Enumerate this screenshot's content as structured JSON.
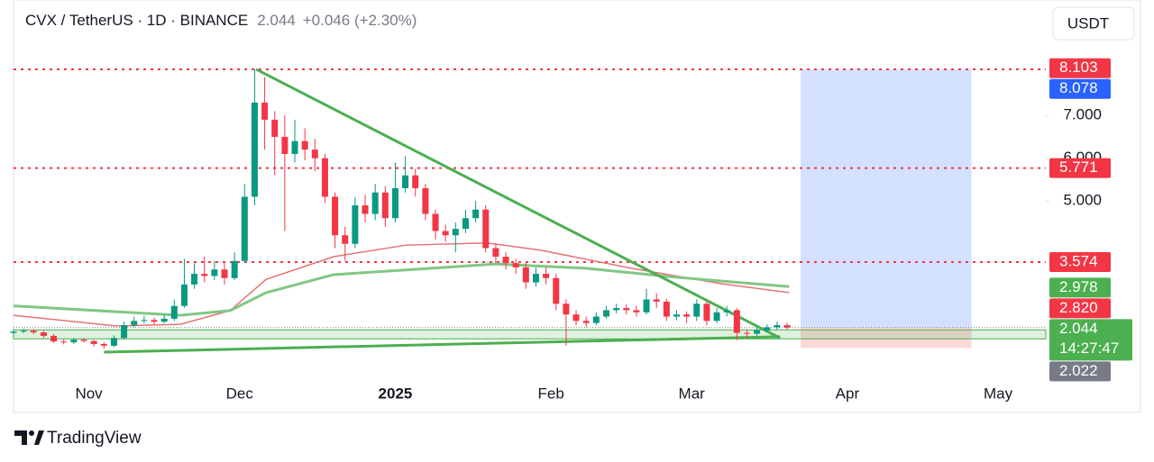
{
  "header": {
    "symbol": "CVX / TetherUS · 1D · BINANCE",
    "price": "2.044",
    "change": "+0.046 (+2.30%)",
    "currency": "USDT",
    "brand": "TradingView"
  },
  "chart_data": {
    "type": "candlestick",
    "up_color": "#089981",
    "down_color": "#f23645",
    "x": [
      0,
      2,
      4,
      6,
      8,
      10,
      12,
      14,
      16,
      18,
      20,
      22,
      24,
      26,
      28,
      30,
      32,
      34,
      36,
      38,
      40,
      42,
      44,
      46,
      48,
      50,
      52,
      54,
      56,
      58,
      60,
      62,
      64,
      66,
      68,
      70,
      72,
      74,
      76,
      78,
      80,
      82,
      84,
      86,
      88,
      90,
      92,
      94,
      96,
      98,
      100,
      102,
      104,
      106,
      108,
      110,
      112,
      114,
      116,
      118,
      120,
      122,
      124,
      126,
      128,
      130,
      132,
      134,
      136,
      138,
      140,
      142,
      144,
      146,
      148,
      150,
      152,
      154
    ],
    "open": [
      1.92,
      1.95,
      1.97,
      1.93,
      1.85,
      1.72,
      1.7,
      1.76,
      1.73,
      1.66,
      1.62,
      1.8,
      2.1,
      2.2,
      2.22,
      2.18,
      2.25,
      2.55,
      3.05,
      3.3,
      3.25,
      3.4,
      3.2,
      3.6,
      5.1,
      7.3,
      6.9,
      6.5,
      6.1,
      6.4,
      6.2,
      6.0,
      5.1,
      4.2,
      4.0,
      4.9,
      4.7,
      5.2,
      4.6,
      5.3,
      5.6,
      5.3,
      4.7,
      4.3,
      4.2,
      4.35,
      4.6,
      4.8,
      3.9,
      3.7,
      3.55,
      3.45,
      3.1,
      3.3,
      3.2,
      2.6,
      2.35,
      2.2,
      2.15,
      2.3,
      2.45,
      2.5,
      2.45,
      2.4,
      2.7,
      2.65,
      2.3,
      2.35,
      2.3,
      2.6,
      2.2,
      2.4,
      2.45,
      1.92,
      1.9,
      1.98,
      2.05,
      2.1
    ],
    "high": [
      2.01,
      2.02,
      2.01,
      1.97,
      1.89,
      1.77,
      1.8,
      1.8,
      1.76,
      1.7,
      1.86,
      2.18,
      2.3,
      2.32,
      2.28,
      2.35,
      2.7,
      3.65,
      3.55,
      3.7,
      3.6,
      3.55,
      3.8,
      5.4,
      8.078,
      7.9,
      7.1,
      7.0,
      6.9,
      6.7,
      6.45,
      6.1,
      5.2,
      4.4,
      5.1,
      5.15,
      5.4,
      5.35,
      5.9,
      6.05,
      5.75,
      5.4,
      4.8,
      4.45,
      4.5,
      4.8,
      5.0,
      4.9,
      4.0,
      3.8,
      3.65,
      3.55,
      3.45,
      3.45,
      3.3,
      2.7,
      2.45,
      2.3,
      2.4,
      2.55,
      2.6,
      2.58,
      2.55,
      2.95,
      2.85,
      2.72,
      2.45,
      2.42,
      2.7,
      2.65,
      2.5,
      2.55,
      2.5,
      2.0,
      2.05,
      2.12,
      2.18,
      2.16
    ],
    "low": [
      1.88,
      1.91,
      1.89,
      1.8,
      1.68,
      1.65,
      1.66,
      1.69,
      1.6,
      1.55,
      1.59,
      1.77,
      2.05,
      2.14,
      2.12,
      2.14,
      2.2,
      2.5,
      2.95,
      3.1,
      3.15,
      3.05,
      3.15,
      3.55,
      4.9,
      6.2,
      5.6,
      4.3,
      5.9,
      5.95,
      5.7,
      4.95,
      3.9,
      3.6,
      3.9,
      4.5,
      4.55,
      4.4,
      4.5,
      5.2,
      5.1,
      4.55,
      4.1,
      4.05,
      3.8,
      4.25,
      4.5,
      3.8,
      3.55,
      3.4,
      3.3,
      2.95,
      3.0,
      3.05,
      2.45,
      1.62,
      2.1,
      2.05,
      2.1,
      2.25,
      2.38,
      2.35,
      2.3,
      2.35,
      2.5,
      2.2,
      2.22,
      2.15,
      2.2,
      2.1,
      2.15,
      2.3,
      1.75,
      1.8,
      1.85,
      1.94,
      2.0,
      2.0
    ],
    "close": [
      1.95,
      1.97,
      1.93,
      1.85,
      1.72,
      1.7,
      1.76,
      1.73,
      1.66,
      1.62,
      1.8,
      2.1,
      2.2,
      2.22,
      2.18,
      2.25,
      2.55,
      3.05,
      3.3,
      3.25,
      3.4,
      3.2,
      3.6,
      5.1,
      7.3,
      6.9,
      6.5,
      6.1,
      6.4,
      6.2,
      6.0,
      5.1,
      4.2,
      4.0,
      4.9,
      4.7,
      5.2,
      4.6,
      5.3,
      5.6,
      5.3,
      4.7,
      4.3,
      4.2,
      4.35,
      4.6,
      4.8,
      3.9,
      3.7,
      3.55,
      3.45,
      3.1,
      3.3,
      3.2,
      2.6,
      2.35,
      2.2,
      2.15,
      2.3,
      2.45,
      2.5,
      2.45,
      2.4,
      2.7,
      2.65,
      2.3,
      2.35,
      2.3,
      2.6,
      2.2,
      2.4,
      2.45,
      1.92,
      1.9,
      1.98,
      2.05,
      2.1,
      2.044
    ],
    "series": [
      {
        "color": "#e57373",
        "x": [
          0,
          20.6,
          33.2,
          43.1,
          50.3,
          63.7,
          78.1,
          94.3,
          105,
          123,
          140.9,
          154.4
        ],
        "values": [
          2.33,
          2.08,
          2.12,
          2.44,
          3.17,
          3.7,
          3.97,
          4.02,
          3.85,
          3.43,
          3.07,
          2.86
        ]
      },
      {
        "color": "#81c784",
        "x": [
          0,
          33.2,
          43.1,
          50.3,
          63.7,
          78.1,
          96,
          113.9,
          131.9,
          154.4
        ],
        "values": [
          2.55,
          2.33,
          2.44,
          2.86,
          3.28,
          3.39,
          3.53,
          3.43,
          3.22,
          3.0
        ]
      }
    ],
    "levels": [
      8.078,
      5.771,
      3.574
    ],
    "level_color": "#f23645",
    "zone": [
      1.78,
      1.99
    ],
    "drawing_color": "#4caf50",
    "trendlines": [
      [
        [
          48.3,
          8.078
        ],
        [
          152.6,
          1.8
        ]
      ],
      [
        [
          18,
          1.47
        ],
        [
          152.6,
          1.83
        ]
      ]
    ],
    "position": {
      "x": [
        156.7,
        190.7
      ],
      "entry": 2.044,
      "target": 8.078,
      "stop": 1.57
    },
    "xlim": [
      0,
      205.5
    ],
    "ylim": [
      0.86,
      8.75
    ],
    "xticks": [
      {
        "value": 15,
        "label": "Nov"
      },
      {
        "value": 45,
        "label": "Dec"
      },
      {
        "value": 76,
        "label": "2025"
      },
      {
        "value": 107,
        "label": "Feb"
      },
      {
        "value": 135,
        "label": "Mar"
      },
      {
        "value": 166,
        "label": "Apr"
      },
      {
        "value": 196,
        "label": "May"
      }
    ],
    "yticks": [
      {
        "value": 5,
        "label": "5.000"
      },
      {
        "value": 6,
        "label": "6.000"
      },
      {
        "value": 7,
        "label": "7.000"
      }
    ],
    "price_labels": [
      {
        "value": 8.103,
        "label": "8.103",
        "color": "#f23645"
      },
      {
        "value": 8.078,
        "label": "8.078",
        "color": "#2962ff"
      },
      {
        "value": 5.771,
        "label": "5.771",
        "color": "#f23645"
      },
      {
        "value": 3.574,
        "label": "3.574",
        "color": "#f23645"
      },
      {
        "value": 2.978,
        "label": "2.978",
        "color": "#4caf50"
      },
      {
        "value": 2.82,
        "label": "2.820",
        "color": "#f23645"
      },
      {
        "value": 2.044,
        "label": "2.044",
        "color": "#4caf50",
        "countdown": "14:27:47"
      },
      {
        "value": 2.022,
        "label": "2.022",
        "color": "#787b86"
      }
    ]
  }
}
